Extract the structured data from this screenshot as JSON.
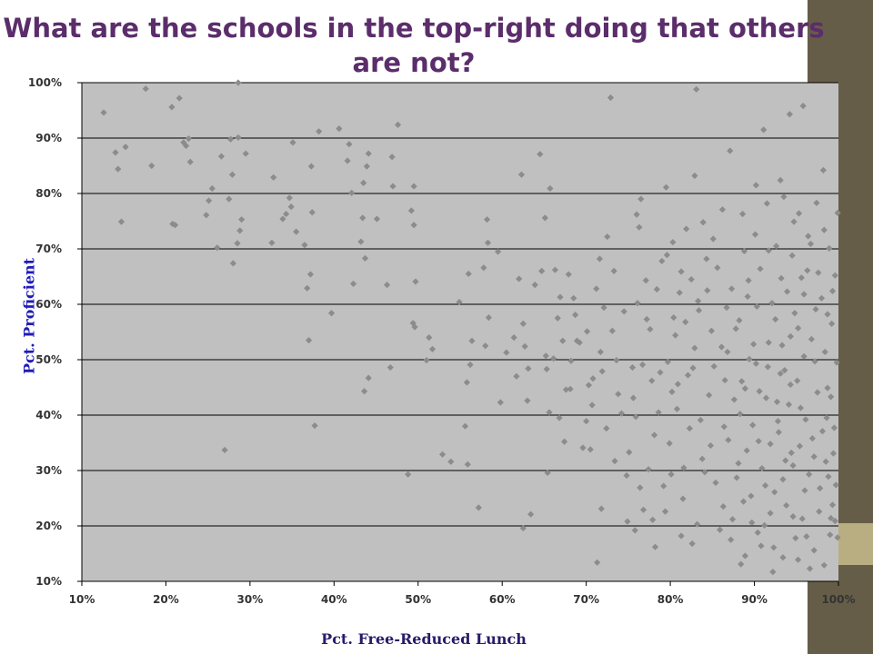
{
  "slide": {
    "title": "What are the schools in the top-right doing that others are not?",
    "accent_dark": "#665d48",
    "accent_light": "#b8ae82",
    "title_color": "#5b2d6b"
  },
  "chart_data": {
    "type": "scatter",
    "title": "What are the schools in the top-right doing that others are not?",
    "xlabel": "Pct. Free-Reduced Lunch",
    "ylabel": "Pct. Proficient",
    "xlim": [
      10,
      100
    ],
    "ylim": [
      10,
      100
    ],
    "xticks": [
      "10%",
      "20%",
      "30%",
      "40%",
      "50%",
      "60%",
      "70%",
      "80%",
      "90%",
      "100%"
    ],
    "yticks": [
      "10%",
      "20%",
      "30%",
      "40%",
      "50%",
      "60%",
      "70%",
      "80%",
      "90%",
      "100%"
    ],
    "grid": "horizontal",
    "plot_background": "#c0c0c0",
    "marker_color": "#8c8c8c",
    "marker": "diamond",
    "points": [
      [
        12.6,
        94.6
      ],
      [
        14,
        87.4
      ],
      [
        14.3,
        84.4
      ],
      [
        14.7,
        74.9
      ],
      [
        15.2,
        88.4
      ],
      [
        17.6,
        98.9
      ],
      [
        18.3,
        85
      ],
      [
        20.7,
        95.6
      ],
      [
        20.8,
        74.5
      ],
      [
        21.1,
        74.3
      ],
      [
        21.6,
        97.2
      ],
      [
        22.1,
        89.2
      ],
      [
        22.4,
        88.6
      ],
      [
        22.7,
        89.9
      ],
      [
        22.9,
        85.7
      ],
      [
        24.8,
        76.1
      ],
      [
        25.1,
        78.7
      ],
      [
        25.5,
        80.9
      ],
      [
        26.1,
        70.2
      ],
      [
        26.6,
        86.7
      ],
      [
        27,
        33.7
      ],
      [
        27.5,
        79
      ],
      [
        27.7,
        89.8
      ],
      [
        27.9,
        83.4
      ],
      [
        28,
        67.4
      ],
      [
        28.5,
        71
      ],
      [
        28.6,
        100
      ],
      [
        28.6,
        90.1
      ],
      [
        28.8,
        73.3
      ],
      [
        29,
        75.3
      ],
      [
        29.5,
        87.2
      ],
      [
        32.6,
        71.1
      ],
      [
        32.8,
        82.9
      ],
      [
        33.9,
        75.4
      ],
      [
        34.3,
        76.3
      ],
      [
        34.7,
        79.2
      ],
      [
        34.9,
        77.6
      ],
      [
        35.1,
        89.2
      ],
      [
        35.5,
        73.1
      ],
      [
        36.5,
        70.7
      ],
      [
        36.8,
        62.9
      ],
      [
        37,
        53.5
      ],
      [
        37.2,
        65.4
      ],
      [
        37.3,
        84.9
      ],
      [
        37.4,
        76.6
      ],
      [
        37.7,
        38.1
      ],
      [
        38.2,
        91.2
      ],
      [
        39.7,
        58.4
      ],
      [
        40.6,
        91.7
      ],
      [
        41.6,
        85.9
      ],
      [
        41.8,
        88.9
      ],
      [
        42.1,
        80.1
      ],
      [
        42.3,
        63.7
      ],
      [
        43.2,
        71.3
      ],
      [
        43.4,
        75.6
      ],
      [
        43.5,
        81.9
      ],
      [
        43.6,
        44.3
      ],
      [
        43.7,
        68.3
      ],
      [
        43.9,
        84.9
      ],
      [
        44.1,
        87.2
      ],
      [
        44.1,
        46.7
      ],
      [
        45.1,
        75.4
      ],
      [
        46.3,
        63.5
      ],
      [
        46.7,
        48.6
      ],
      [
        46.9,
        86.6
      ],
      [
        47,
        81.3
      ],
      [
        47.6,
        92.4
      ],
      [
        48.8,
        29.3
      ],
      [
        49.2,
        76.9
      ],
      [
        49.5,
        81.3
      ],
      [
        49.4,
        56.6
      ],
      [
        49.6,
        55.9
      ],
      [
        49.7,
        64.1
      ],
      [
        49.5,
        74.3
      ],
      [
        51,
        49.9
      ],
      [
        51.3,
        54
      ],
      [
        51.7,
        51.9
      ],
      [
        52.9,
        32.9
      ],
      [
        53.9,
        31.6
      ],
      [
        54.9,
        60.4
      ],
      [
        55.6,
        38
      ],
      [
        55.8,
        45.9
      ],
      [
        55.9,
        31.1
      ],
      [
        56,
        65.5
      ],
      [
        56.2,
        49.1
      ],
      [
        56.4,
        53.4
      ],
      [
        57.2,
        23.3
      ],
      [
        57.8,
        66.6
      ],
      [
        58,
        52.5
      ],
      [
        58.4,
        57.6
      ],
      [
        58.3,
        71.1
      ],
      [
        58.2,
        75.3
      ],
      [
        59.5,
        69.5
      ],
      [
        59.8,
        42.3
      ],
      [
        60.5,
        51.3
      ],
      [
        61.4,
        54
      ],
      [
        61.7,
        47
      ],
      [
        62,
        64.6
      ],
      [
        62.3,
        83.4
      ],
      [
        62.5,
        56.5
      ],
      [
        62.5,
        19.6
      ],
      [
        62.7,
        52.4
      ],
      [
        63,
        42.6
      ],
      [
        63.1,
        48.4
      ],
      [
        63.4,
        22.1
      ],
      [
        63.9,
        63.5
      ],
      [
        64.5,
        87.1
      ],
      [
        64.7,
        66
      ],
      [
        65.1,
        75.6
      ],
      [
        65.2,
        50.7
      ],
      [
        65.3,
        48.3
      ],
      [
        65.4,
        29.6
      ],
      [
        65.7,
        80.9
      ],
      [
        66.3,
        66.2
      ],
      [
        66.6,
        57.5
      ],
      [
        66.8,
        39.5
      ],
      [
        67.2,
        53.4
      ],
      [
        67.6,
        44.6
      ],
      [
        67.9,
        65.4
      ],
      [
        68.2,
        49.8
      ],
      [
        68.5,
        61.1
      ],
      [
        68.9,
        53.4
      ],
      [
        69.2,
        53.1
      ],
      [
        70,
        38.9
      ],
      [
        70.3,
        45.4
      ],
      [
        70.5,
        33.8
      ],
      [
        70.8,
        46.6
      ],
      [
        71.3,
        13.4
      ],
      [
        71.6,
        68.2
      ],
      [
        71.8,
        23.1
      ],
      [
        71.7,
        51.4
      ],
      [
        72.1,
        59.4
      ],
      [
        72.5,
        72.2
      ],
      [
        72.9,
        97.3
      ],
      [
        73.3,
        66
      ],
      [
        73.6,
        49.9
      ],
      [
        74.2,
        40.3
      ],
      [
        74.9,
        20.8
      ],
      [
        75.5,
        48.6
      ],
      [
        75.6,
        43.1
      ],
      [
        75.8,
        19.2
      ],
      [
        76,
        76.2
      ],
      [
        76.3,
        73.9
      ],
      [
        76.5,
        79
      ],
      [
        76.8,
        22.9
      ],
      [
        77.2,
        57.3
      ],
      [
        77.6,
        55.5
      ],
      [
        77.8,
        46.2
      ],
      [
        78.2,
        16.2
      ],
      [
        78.6,
        40.5
      ],
      [
        79,
        67.8
      ],
      [
        79.5,
        81.1
      ],
      [
        79.7,
        49.6
      ],
      [
        80.1,
        29.3
      ],
      [
        80.3,
        71.2
      ],
      [
        80.6,
        54.4
      ],
      [
        80.9,
        45.6
      ],
      [
        81.3,
        65.9
      ],
      [
        81.6,
        30.5
      ],
      [
        81.8,
        56.8
      ],
      [
        82.1,
        47.2
      ],
      [
        82.6,
        16.8
      ],
      [
        82.9,
        83.2
      ],
      [
        83.1,
        98.8
      ],
      [
        83.3,
        60.6
      ],
      [
        83.6,
        39.1
      ],
      [
        83.9,
        74.8
      ],
      [
        84.1,
        29.7
      ],
      [
        84.4,
        62.5
      ],
      [
        84.8,
        34.5
      ],
      [
        85.2,
        48.8
      ],
      [
        85.6,
        66.6
      ],
      [
        85.9,
        19.3
      ],
      [
        86.2,
        77.1
      ],
      [
        86.4,
        37.9
      ],
      [
        86.7,
        59.4
      ],
      [
        87.1,
        87.7
      ],
      [
        87.4,
        21.2
      ],
      [
        87.8,
        55.6
      ],
      [
        88.1,
        31.3
      ],
      [
        88.4,
        13.1
      ],
      [
        88.6,
        76.3
      ],
      [
        88.9,
        44.8
      ],
      [
        89.3,
        64.3
      ],
      [
        89.6,
        25.4
      ],
      [
        89.9,
        52.8
      ],
      [
        90.2,
        81.5
      ],
      [
        90.5,
        35.3
      ],
      [
        90.8,
        16.4
      ],
      [
        91.1,
        91.5
      ],
      [
        91.4,
        43.1
      ],
      [
        91.7,
        69.7
      ],
      [
        91.9,
        22.3
      ],
      [
        92.2,
        11.7
      ],
      [
        92.5,
        57.3
      ],
      [
        92.8,
        38.9
      ],
      [
        93.1,
        82.4
      ],
      [
        93.4,
        28.4
      ],
      [
        93.6,
        48.1
      ],
      [
        93.9,
        62.3
      ],
      [
        94.2,
        94.3
      ],
      [
        94.4,
        33.2
      ],
      [
        94.7,
        74.9
      ],
      [
        94.9,
        17.8
      ],
      [
        95.2,
        55.7
      ],
      [
        95.5,
        41.3
      ],
      [
        95.8,
        95.8
      ],
      [
        96,
        26.4
      ],
      [
        96.3,
        66.1
      ],
      [
        96.6,
        12.3
      ],
      [
        96.9,
        35.8
      ],
      [
        97.2,
        49.7
      ],
      [
        97.4,
        78.3
      ],
      [
        97.7,
        22.6
      ],
      [
        98,
        61.1
      ],
      [
        98.2,
        84.2
      ],
      [
        98.5,
        31.6
      ],
      [
        98.7,
        44.9
      ],
      [
        99,
        18.4
      ],
      [
        99.2,
        56.5
      ],
      [
        99.5,
        37.7
      ],
      [
        99.7,
        27.4
      ],
      [
        99.9,
        76.5
      ],
      [
        99.8,
        49.5
      ],
      [
        99.9,
        17.9
      ],
      [
        99.6,
        65.2
      ],
      [
        99.3,
        23.8
      ],
      [
        98.9,
        70.1
      ],
      [
        98.6,
        39.5
      ],
      [
        86.5,
        46.3
      ],
      [
        87.9,
        28.7
      ],
      [
        88.3,
        40.2
      ],
      [
        89.1,
        33.6
      ],
      [
        89.7,
        20.6
      ],
      [
        90.3,
        59.6
      ],
      [
        90.9,
        30.4
      ],
      [
        91.6,
        48.7
      ],
      [
        92.4,
        26.1
      ],
      [
        92.9,
        36.9
      ],
      [
        93.3,
        52.6
      ],
      [
        93.8,
        23.7
      ],
      [
        94.1,
        41.9
      ],
      [
        94.6,
        30.9
      ],
      [
        95.1,
        46.2
      ],
      [
        95.4,
        34.4
      ],
      [
        95.7,
        21.3
      ],
      [
        96.1,
        39.2
      ],
      [
        96.5,
        29.3
      ],
      [
        96.8,
        53.7
      ],
      [
        97.1,
        32.5
      ],
      [
        97.5,
        44.1
      ],
      [
        97.8,
        26.8
      ],
      [
        98.1,
        37.1
      ],
      [
        98.4,
        51.4
      ],
      [
        98.8,
        28.9
      ],
      [
        99.1,
        43.3
      ],
      [
        99.4,
        33.1
      ],
      [
        99.6,
        20.9
      ],
      [
        97.3,
        59.1
      ],
      [
        96.4,
        72.3
      ],
      [
        95.6,
        64.8
      ],
      [
        94.8,
        58.4
      ],
      [
        94.3,
        45.5
      ],
      [
        93.7,
        31.8
      ],
      [
        92.7,
        42.4
      ],
      [
        91.9,
        34.8
      ],
      [
        91.3,
        27.3
      ],
      [
        90.6,
        44.3
      ],
      [
        89.8,
        38.2
      ],
      [
        89.4,
        50.1
      ],
      [
        88.7,
        24.4
      ],
      [
        87.6,
        42.8
      ],
      [
        86.9,
        35.5
      ],
      [
        86.1,
        52.3
      ],
      [
        85.4,
        27.8
      ],
      [
        84.6,
        43.6
      ],
      [
        83.8,
        32.1
      ],
      [
        82.9,
        52.1
      ],
      [
        82.3,
        37.6
      ],
      [
        81.5,
        24.9
      ],
      [
        80.8,
        41.1
      ],
      [
        79.9,
        34.9
      ],
      [
        79.2,
        27.2
      ],
      [
        78.8,
        47.7
      ],
      [
        78.1,
        36.4
      ],
      [
        77.4,
        30.2
      ],
      [
        76.7,
        49.1
      ],
      [
        75.9,
        39.7
      ],
      [
        75.1,
        33.3
      ],
      [
        74.5,
        58.7
      ],
      [
        73.8,
        43.8
      ],
      [
        73.1,
        55.2
      ],
      [
        72.4,
        37.6
      ],
      [
        71.9,
        47.9
      ],
      [
        71.2,
        62.8
      ],
      [
        70.7,
        41.8
      ],
      [
        70.1,
        55.1
      ],
      [
        69.6,
        34.1
      ],
      [
        68.7,
        58.1
      ],
      [
        68.1,
        44.7
      ],
      [
        67.4,
        35.2
      ],
      [
        66.9,
        61.3
      ],
      [
        66.1,
        50.2
      ],
      [
        65.6,
        40.5
      ],
      [
        87.3,
        62.8
      ],
      [
        88.2,
        57.1
      ],
      [
        88.8,
        69.6
      ],
      [
        89.2,
        61.4
      ],
      [
        90.1,
        72.6
      ],
      [
        90.7,
        66.4
      ],
      [
        91.5,
        78.2
      ],
      [
        92.1,
        60.2
      ],
      [
        92.6,
        70.5
      ],
      [
        93.2,
        64.7
      ],
      [
        93.5,
        79.4
      ],
      [
        94.5,
        68.8
      ],
      [
        95.3,
        76.4
      ],
      [
        95.9,
        61.8
      ],
      [
        96.7,
        70.9
      ],
      [
        97.6,
        65.7
      ],
      [
        98.3,
        73.4
      ],
      [
        98.7,
        58.2
      ],
      [
        99.3,
        62.4
      ],
      [
        85.1,
        71.8
      ],
      [
        84.3,
        68.2
      ],
      [
        83.4,
        58.9
      ],
      [
        82.5,
        64.5
      ],
      [
        81.9,
        73.6
      ],
      [
        81.1,
        62.1
      ],
      [
        80.4,
        57.6
      ],
      [
        79.6,
        68.9
      ],
      [
        78.4,
        62.7
      ],
      [
        77.1,
        64.3
      ],
      [
        76.1,
        60.2
      ],
      [
        86.3,
        23.5
      ],
      [
        87.2,
        17.5
      ],
      [
        88.9,
        14.6
      ],
      [
        90.4,
        18.8
      ],
      [
        91.2,
        20.1
      ],
      [
        92.3,
        16.1
      ],
      [
        93.4,
        14.3
      ],
      [
        94.6,
        21.7
      ],
      [
        95.2,
        13.9
      ],
      [
        96.2,
        18.1
      ],
      [
        97.1,
        15.6
      ],
      [
        98.3,
        12.9
      ],
      [
        99.1,
        21.4
      ],
      [
        83.2,
        20.3
      ],
      [
        81.3,
        18.2
      ],
      [
        79.4,
        22.6
      ],
      [
        77.9,
        21.1
      ],
      [
        76.4,
        26.9
      ],
      [
        74.8,
        29.1
      ],
      [
        73.4,
        31.7
      ],
      [
        80.2,
        44.2
      ],
      [
        82.7,
        48.5
      ],
      [
        84.9,
        55.2
      ],
      [
        86.8,
        51.4
      ],
      [
        88.5,
        46.1
      ],
      [
        90.2,
        49.3
      ],
      [
        91.7,
        53.1
      ],
      [
        93.1,
        47.5
      ],
      [
        94.3,
        54.2
      ],
      [
        95.9,
        50.6
      ]
    ]
  }
}
